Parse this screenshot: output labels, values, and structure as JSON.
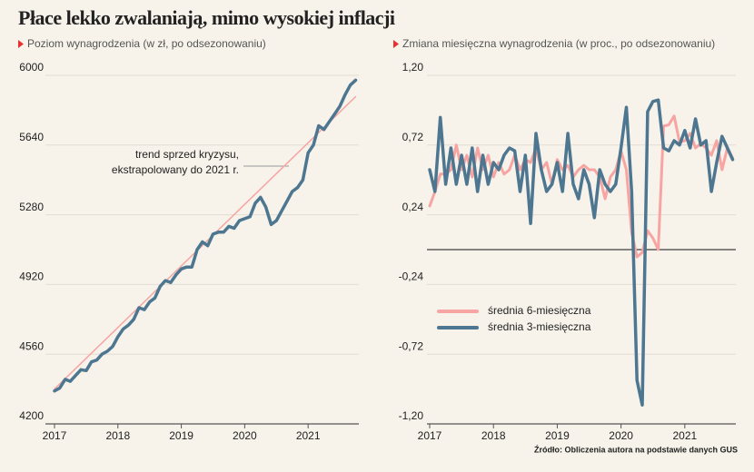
{
  "title": "Płace lekko zwalaniają, mimo wysokiej inflacji",
  "source": "Źródło: Obliczenia autora na podstawie danych GUS",
  "chart_data": [
    {
      "type": "line",
      "subtitle": "Poziom wynagrodzenia (w zł, po odsezonowaniu)",
      "annotation": [
        "trend sprzed kryzysu,",
        "ekstrapolowany do 2021 r."
      ],
      "xlim": [
        2017,
        2021.8
      ],
      "xticks": [
        2017,
        2018,
        2019,
        2020,
        2021
      ],
      "ylim": [
        4200,
        6000
      ],
      "yticks": [
        4200,
        4560,
        4920,
        5280,
        5640,
        6000
      ],
      "grid": true,
      "x": [
        2017,
        2017.083,
        2017.167,
        2017.25,
        2017.333,
        2017.417,
        2017.5,
        2017.583,
        2017.667,
        2017.75,
        2017.833,
        2017.917,
        2018,
        2018.083,
        2018.167,
        2018.25,
        2018.333,
        2018.417,
        2018.5,
        2018.583,
        2018.667,
        2018.75,
        2018.833,
        2018.917,
        2019,
        2019.083,
        2019.167,
        2019.25,
        2019.333,
        2019.417,
        2019.5,
        2019.583,
        2019.667,
        2019.75,
        2019.833,
        2019.917,
        2020,
        2020.083,
        2020.167,
        2020.25,
        2020.333,
        2020.417,
        2020.5,
        2020.583,
        2020.667,
        2020.75,
        2020.833,
        2020.917,
        2021,
        2021.083,
        2021.167,
        2021.25,
        2021.333,
        2021.417,
        2021.5,
        2021.583,
        2021.667,
        2021.75
      ],
      "series": [
        {
          "color": "#f6a5a2",
          "x": [
            2017,
            2021.75
          ],
          "values": [
            4380,
            5890
          ]
        },
        {
          "color": "#4d7690",
          "values": [
            4370,
            4385,
            4430,
            4420,
            4450,
            4480,
            4475,
            4520,
            4530,
            4560,
            4575,
            4600,
            4650,
            4690,
            4710,
            4740,
            4800,
            4790,
            4830,
            4850,
            4910,
            4940,
            4930,
            4970,
            5000,
            5010,
            5010,
            5100,
            5140,
            5120,
            5180,
            5190,
            5190,
            5220,
            5210,
            5250,
            5260,
            5270,
            5340,
            5370,
            5320,
            5230,
            5250,
            5300,
            5350,
            5400,
            5420,
            5460,
            5600,
            5640,
            5740,
            5720,
            5760,
            5800,
            5840,
            5900,
            5950,
            5975
          ]
        }
      ]
    },
    {
      "type": "line",
      "subtitle": "Zmiana miesięczna wynagrodzenia (w proc., po odsezonowaniu)",
      "xlim": [
        2017,
        2021.8
      ],
      "xticks": [
        2017,
        2018,
        2019,
        2020,
        2021
      ],
      "ylim": [
        -1.2,
        1.2
      ],
      "yticks": [
        {
          "value": -1.2,
          "label": "-1,20"
        },
        {
          "value": -0.72,
          "label": "-0,72"
        },
        {
          "value": -0.24,
          "label": "-0,24"
        },
        {
          "value": 0.24,
          "label": "0,24"
        },
        {
          "value": 0.72,
          "label": "0,72"
        },
        {
          "value": 1.2,
          "label": "1,20"
        }
      ],
      "grid": true,
      "x": [
        2017,
        2017.083,
        2017.167,
        2017.25,
        2017.333,
        2017.417,
        2017.5,
        2017.583,
        2017.667,
        2017.75,
        2017.833,
        2017.917,
        2018,
        2018.083,
        2018.167,
        2018.25,
        2018.333,
        2018.417,
        2018.5,
        2018.583,
        2018.667,
        2018.75,
        2018.833,
        2018.917,
        2019,
        2019.083,
        2019.167,
        2019.25,
        2019.333,
        2019.417,
        2019.5,
        2019.583,
        2019.667,
        2019.75,
        2019.833,
        2019.917,
        2020,
        2020.083,
        2020.167,
        2020.25,
        2020.333,
        2020.417,
        2020.5,
        2020.583,
        2020.667,
        2020.75,
        2020.833,
        2020.917,
        2021,
        2021.083,
        2021.167,
        2021.25,
        2021.333,
        2021.417,
        2021.5,
        2021.583,
        2021.667,
        2021.75
      ],
      "series": [
        {
          "name": "średnia 6-miesięczna",
          "color": "#f6a5a2",
          "values": [
            0.3,
            0.4,
            0.52,
            0.52,
            0.55,
            0.72,
            0.55,
            0.65,
            0.5,
            0.7,
            0.55,
            0.65,
            0.5,
            0.6,
            0.52,
            0.55,
            0.65,
            0.55,
            0.62,
            0.6,
            0.7,
            0.55,
            0.6,
            0.45,
            0.62,
            0.55,
            0.58,
            0.5,
            0.55,
            0.58,
            0.55,
            0.55,
            0.5,
            0.35,
            0.5,
            0.55,
            0.68,
            0.55,
            0.12,
            -0.05,
            -0.02,
            0.13,
            0.08,
            0.0,
            0.85,
            0.86,
            0.92,
            0.74,
            0.75,
            0.8,
            0.7,
            0.73,
            0.7,
            0.65,
            0.75,
            0.55,
            0.7,
            0.63
          ]
        },
        {
          "name": "średnia 3-miesięczna",
          "color": "#4d7690",
          "values": [
            0.55,
            0.4,
            0.91,
            0.45,
            0.7,
            0.45,
            0.65,
            0.45,
            0.7,
            0.4,
            0.65,
            0.45,
            0.6,
            0.55,
            0.65,
            0.7,
            0.68,
            0.4,
            0.65,
            0.18,
            0.8,
            0.55,
            0.4,
            0.45,
            0.6,
            0.4,
            0.8,
            0.45,
            0.35,
            0.55,
            0.45,
            0.22,
            0.55,
            0.45,
            0.4,
            0.45,
            0.7,
            0.98,
            0.4,
            -0.9,
            -1.07,
            0.95,
            1.02,
            1.03,
            0.7,
            0.68,
            0.75,
            0.72,
            0.82,
            0.7,
            0.9,
            0.72,
            0.75,
            0.4,
            0.6,
            0.78,
            0.7,
            0.62
          ]
        }
      ]
    }
  ]
}
